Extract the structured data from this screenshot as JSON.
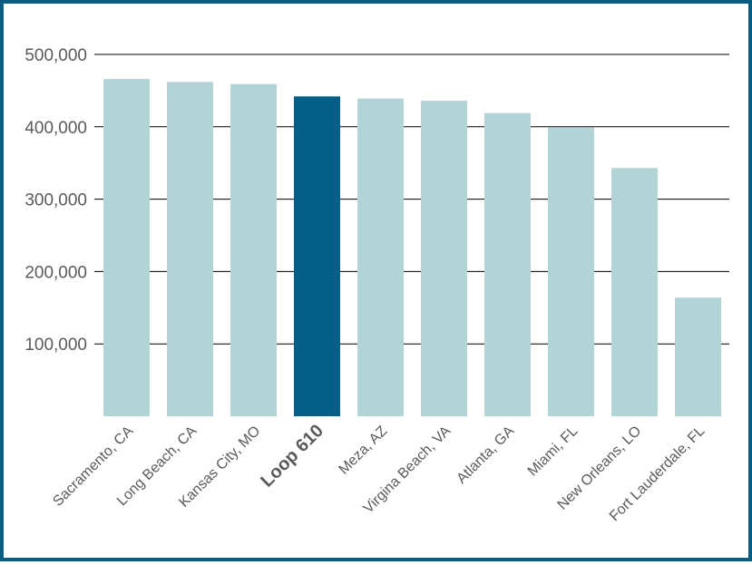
{
  "chart_data": {
    "type": "bar",
    "categories": [
      "Sacramento, CA",
      "Long Beach, CA",
      "Kansas City, MO",
      "Loop 610",
      "Meza, AZ",
      "Virgina Beach, VA",
      "Atlanta, GA",
      "Miami, FL",
      "New Orleans, LO",
      "Fort Lauderdale, FL"
    ],
    "values": [
      466000,
      462000,
      459000,
      442000,
      439000,
      436000,
      419000,
      399000,
      343000,
      164000
    ],
    "highlight_index": 3,
    "ylim": [
      0,
      500000
    ],
    "yticks": [
      100000,
      200000,
      300000,
      400000,
      500000
    ],
    "ytick_labels": [
      "100,000",
      "200,000",
      "300,000",
      "400,000",
      "500,000"
    ],
    "grid": true,
    "title": "",
    "xlabel": "",
    "ylabel": ""
  },
  "colors": {
    "bar": "#b2d4d7",
    "highlight_bar": "#045f88",
    "highlight_label": "#045f88",
    "grid": "#000000",
    "border": "#0a5c80"
  }
}
